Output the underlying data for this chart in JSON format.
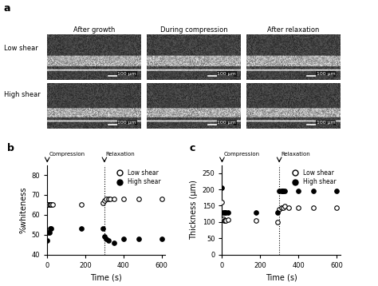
{
  "panel_b": {
    "low_shear_x": [
      0,
      5,
      10,
      15,
      20,
      30,
      180,
      290,
      300,
      310,
      320,
      330,
      350,
      400,
      480,
      600
    ],
    "low_shear_y": [
      65,
      65,
      65,
      65,
      65,
      65,
      65,
      66,
      67,
      68,
      68,
      68,
      68,
      68,
      68,
      68
    ],
    "high_shear_x": [
      0,
      5,
      10,
      15,
      20,
      180,
      290,
      300,
      310,
      320,
      350,
      400,
      480,
      600
    ],
    "high_shear_y": [
      47,
      51,
      51,
      53,
      53,
      53,
      53,
      49,
      48,
      47,
      46,
      48,
      48,
      48
    ],
    "compression_x": 0,
    "relaxation_x": 300,
    "ylim": [
      40,
      85
    ],
    "yticks": [
      40,
      50,
      60,
      70,
      80
    ],
    "xlim": [
      0,
      620
    ],
    "xticks": [
      0,
      200,
      400,
      600
    ],
    "ylabel": "%whiteness",
    "xlabel": "Time (s)"
  },
  "panel_c": {
    "low_shear_x": [
      0,
      5,
      10,
      15,
      20,
      30,
      180,
      290,
      300,
      310,
      320,
      330,
      350,
      400,
      480,
      600
    ],
    "low_shear_y": [
      160,
      110,
      105,
      105,
      105,
      107,
      105,
      100,
      140,
      145,
      145,
      148,
      145,
      145,
      145,
      145
    ],
    "high_shear_x": [
      0,
      5,
      10,
      15,
      20,
      30,
      180,
      290,
      300,
      310,
      315,
      320,
      330,
      400,
      480,
      600
    ],
    "high_shear_y": [
      205,
      130,
      130,
      130,
      130,
      128,
      130,
      130,
      195,
      195,
      195,
      195,
      195,
      195,
      195,
      195
    ],
    "compression_x": 0,
    "relaxation_x": 300,
    "ylim": [
      0,
      275
    ],
    "yticks": [
      0,
      50,
      100,
      150,
      200,
      250
    ],
    "xlim": [
      0,
      620
    ],
    "xticks": [
      0,
      200,
      400,
      600
    ],
    "ylabel": "Thickness (μm)",
    "xlabel": "Time (s)"
  },
  "images": {
    "cols": [
      "After growth",
      "During compression",
      "After relaxation"
    ],
    "rows": [
      "Low shear",
      "High shear"
    ],
    "scale_bar": "100 μm"
  },
  "panel_labels": [
    "a",
    "b",
    "c"
  ],
  "legend_labels": [
    "Low shear",
    "High shear"
  ],
  "annotation_compression": "Compression",
  "annotation_relaxation": "Relaxation",
  "bg_color": "#ffffff"
}
